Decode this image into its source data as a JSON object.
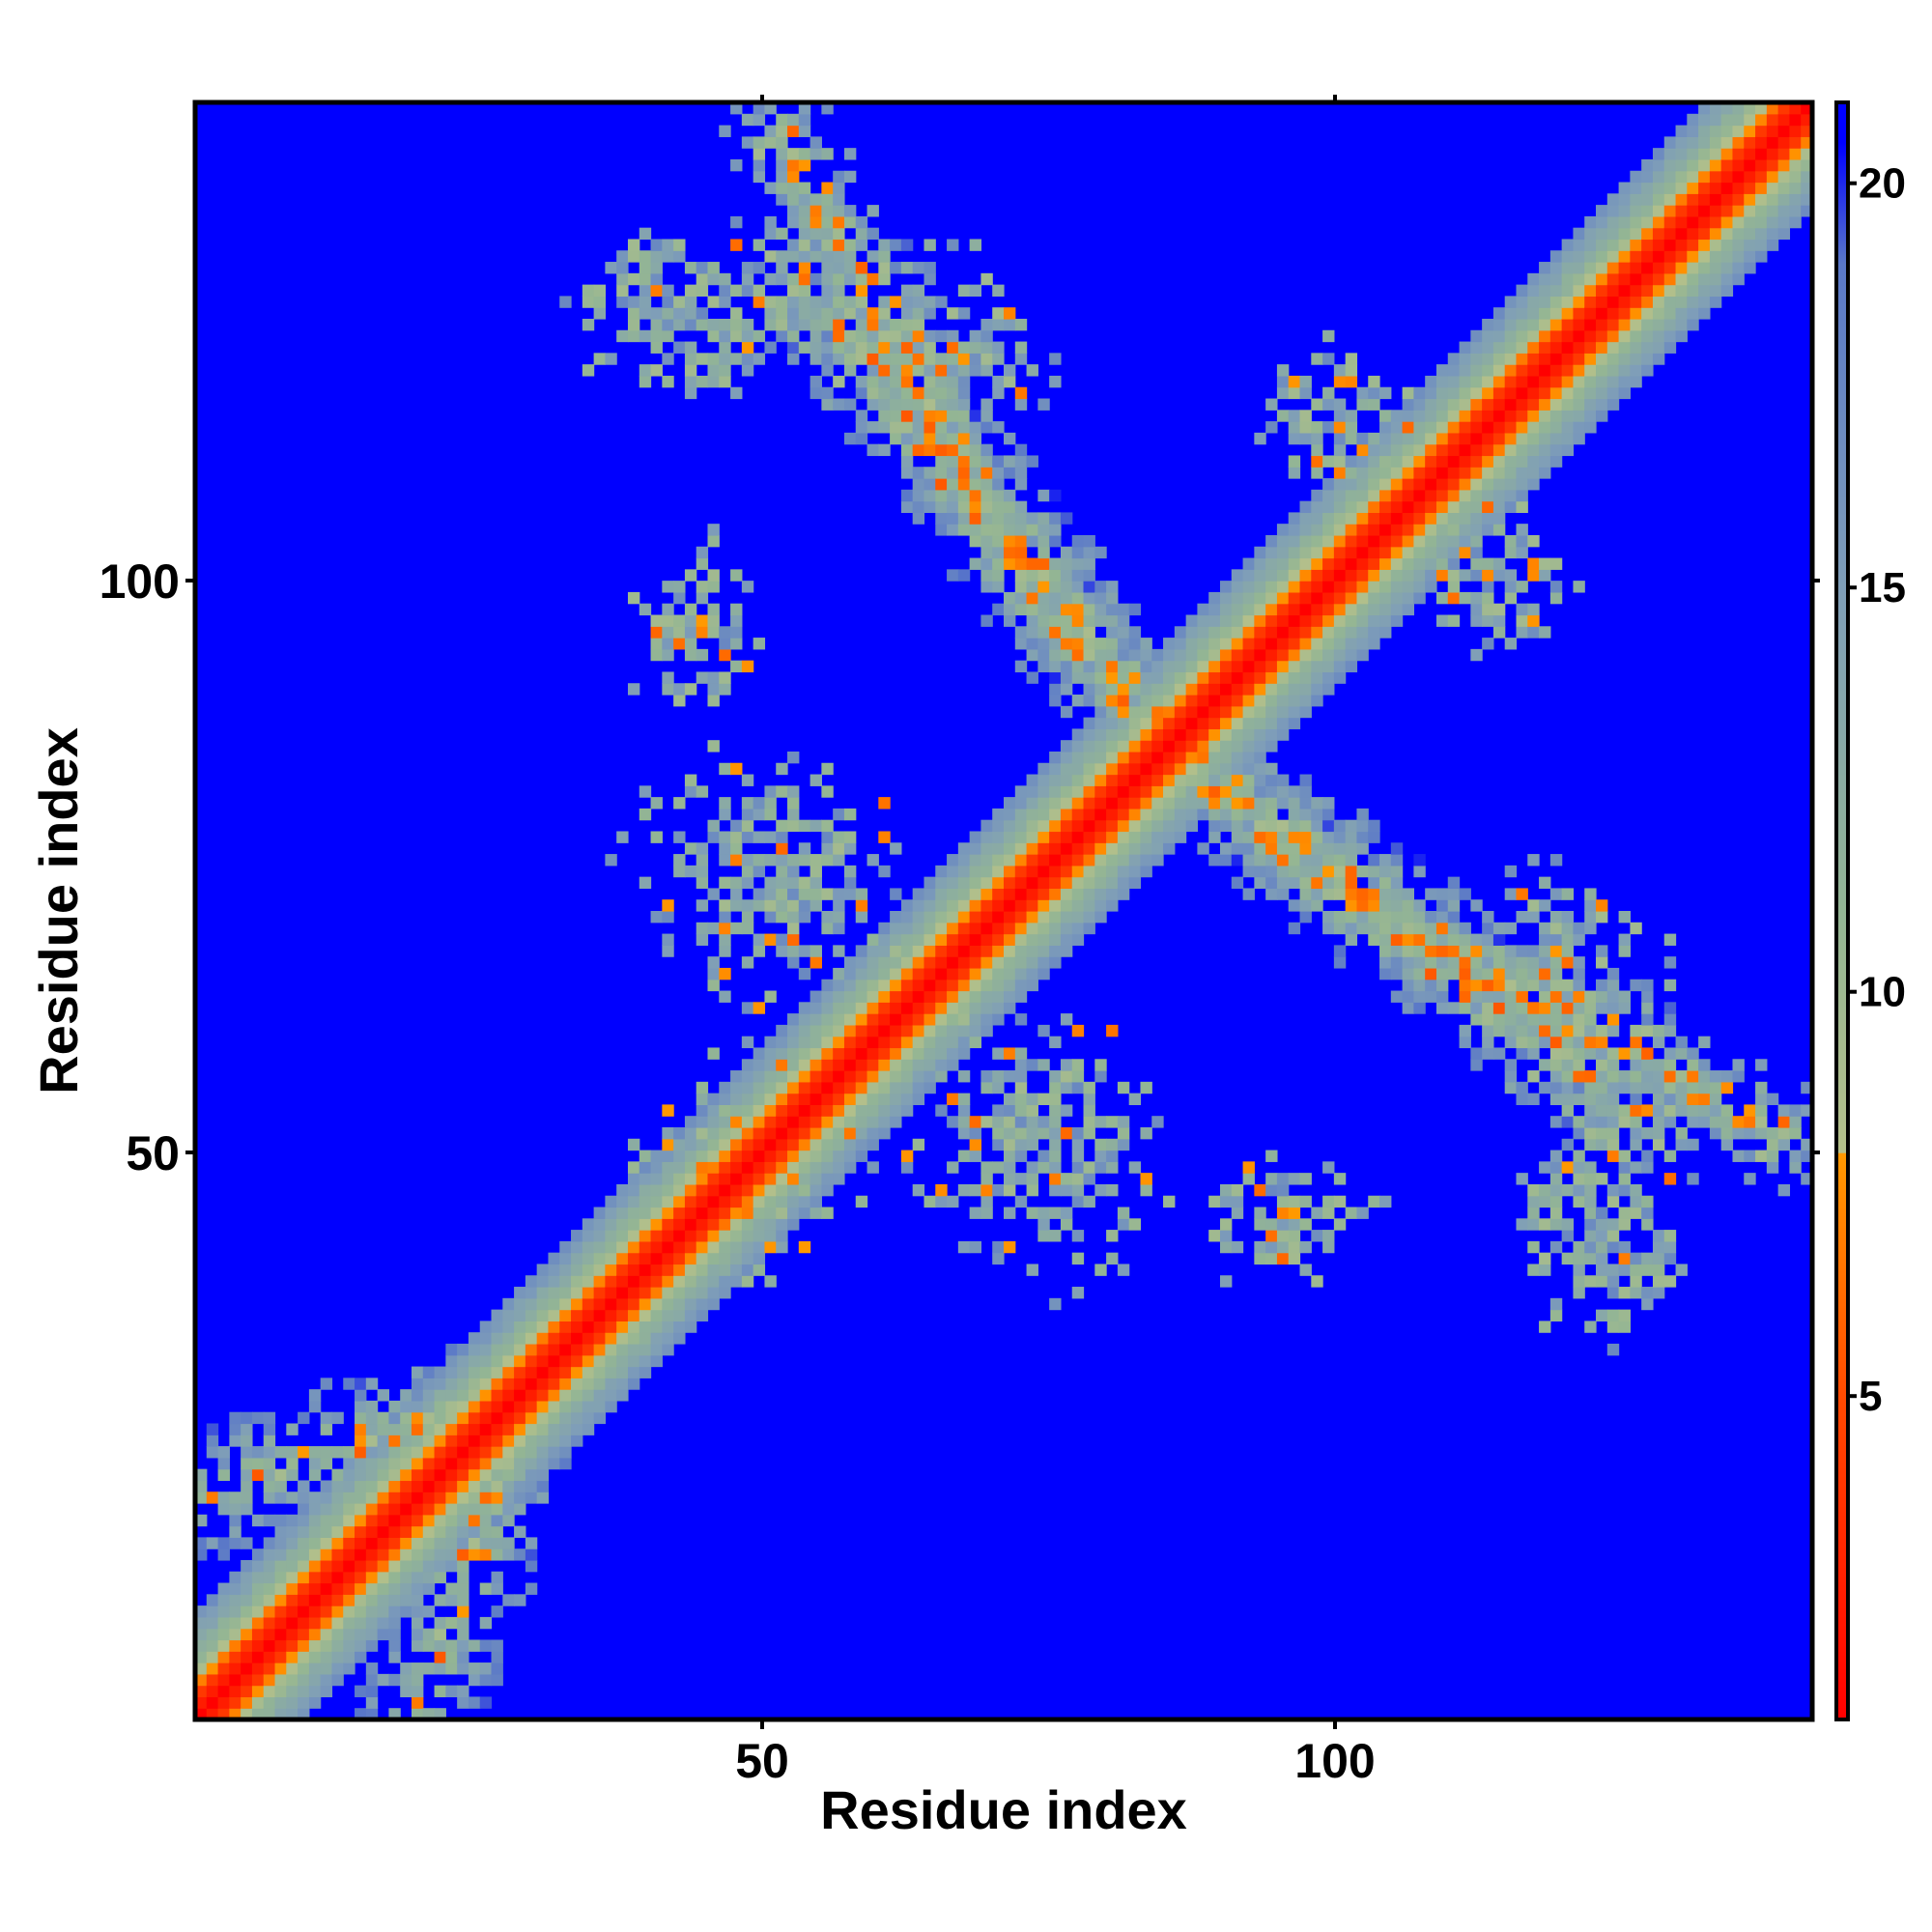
{
  "chart_data": {
    "type": "heatmap",
    "title": "",
    "xlabel": "Residue index",
    "ylabel": "Residue index",
    "n_residues": 142,
    "xlim": [
      1,
      142
    ],
    "ylim": [
      1,
      142
    ],
    "x_ticks": [
      50,
      100
    ],
    "y_ticks": [
      50,
      100
    ],
    "colorbar": {
      "range": [
        1,
        21
      ],
      "ticks": [
        5,
        10,
        15,
        20
      ],
      "stops": [
        {
          "value": 1,
          "color": "#ff0000"
        },
        {
          "value": 5,
          "color": "#ff4a00"
        },
        {
          "value": 8,
          "color": "#ff9900"
        },
        {
          "value": 8.01,
          "color": "#b5c08a"
        },
        {
          "value": 11,
          "color": "#93b594"
        },
        {
          "value": 15,
          "color": "#7f9eb8"
        },
        {
          "value": 19,
          "color": "#5a78c8"
        },
        {
          "value": 20.5,
          "color": "#0000ff"
        }
      ]
    },
    "background_value": 21,
    "background_color": "#0000ff",
    "features": [
      {
        "kind": "diagonal",
        "x_range": [
          1,
          142
        ],
        "core_max": 8,
        "halo_max": 16
      },
      {
        "kind": "cross_band",
        "from": [
          45,
          44
        ],
        "to": [
          78,
          78
        ],
        "strength": 0.9
      },
      {
        "kind": "cross_band",
        "from": [
          20,
          1
        ],
        "to": [
          28,
          24
        ],
        "strength": 0.6
      },
      {
        "kind": "anti_diagonal_band",
        "from": [
          56,
          124
        ],
        "to": [
          77,
          96
        ],
        "strength": 0.75
      },
      {
        "kind": "anti_diagonal_band",
        "from": [
          77,
          96
        ],
        "to": [
          88,
          84
        ],
        "strength": 0.7
      },
      {
        "kind": "anti_diagonal_band",
        "from": [
          92,
          82
        ],
        "to": [
          112,
          67
        ],
        "strength": 0.75
      },
      {
        "kind": "anti_diagonal_band",
        "from": [
          112,
          67
        ],
        "to": [
          140,
          52
        ],
        "strength": 0.7
      },
      {
        "kind": "patch",
        "x_range": [
          33,
          47
        ],
        "y_range": [
          118,
          132
        ],
        "strength": 0.7
      },
      {
        "kind": "patch",
        "x_range": [
          60,
          76
        ],
        "y_range": [
          112,
          125
        ],
        "strength": 0.55
      },
      {
        "kind": "patch",
        "x_range": [
          38,
          47
        ],
        "y_range": [
          89,
          104
        ],
        "strength": 0.6
      },
      {
        "kind": "patch",
        "x_range": [
          38,
          62
        ],
        "y_range": [
          68,
          86
        ],
        "strength": 0.6
      },
      {
        "kind": "patch",
        "x_range": [
          42,
          55
        ],
        "y_range": [
          38,
          60
        ],
        "strength": 0.6
      },
      {
        "kind": "patch",
        "x_range": [
          62,
          82
        ],
        "y_range": [
          42,
          62
        ],
        "strength": 0.6
      },
      {
        "kind": "patch",
        "x_range": [
          88,
          104
        ],
        "y_range": [
          41,
          50
        ],
        "strength": 0.65
      },
      {
        "kind": "patch",
        "x_range": [
          94,
          108
        ],
        "y_range": [
          105,
          122
        ],
        "strength": 0.5
      },
      {
        "kind": "patch",
        "x_range": [
          104,
          122
        ],
        "y_range": [
          95,
          105
        ],
        "strength": 0.5
      },
      {
        "kind": "patch",
        "x_range": [
          115,
          132
        ],
        "y_range": [
          35,
          60
        ],
        "strength": 0.6
      },
      {
        "kind": "patch",
        "x_range": [
          120,
          140
        ],
        "y_range": [
          48,
          58
        ],
        "strength": 0.55
      },
      {
        "kind": "patch",
        "x_range": [
          110,
          130
        ],
        "y_range": [
          55,
          75
        ],
        "strength": 0.55
      }
    ]
  }
}
